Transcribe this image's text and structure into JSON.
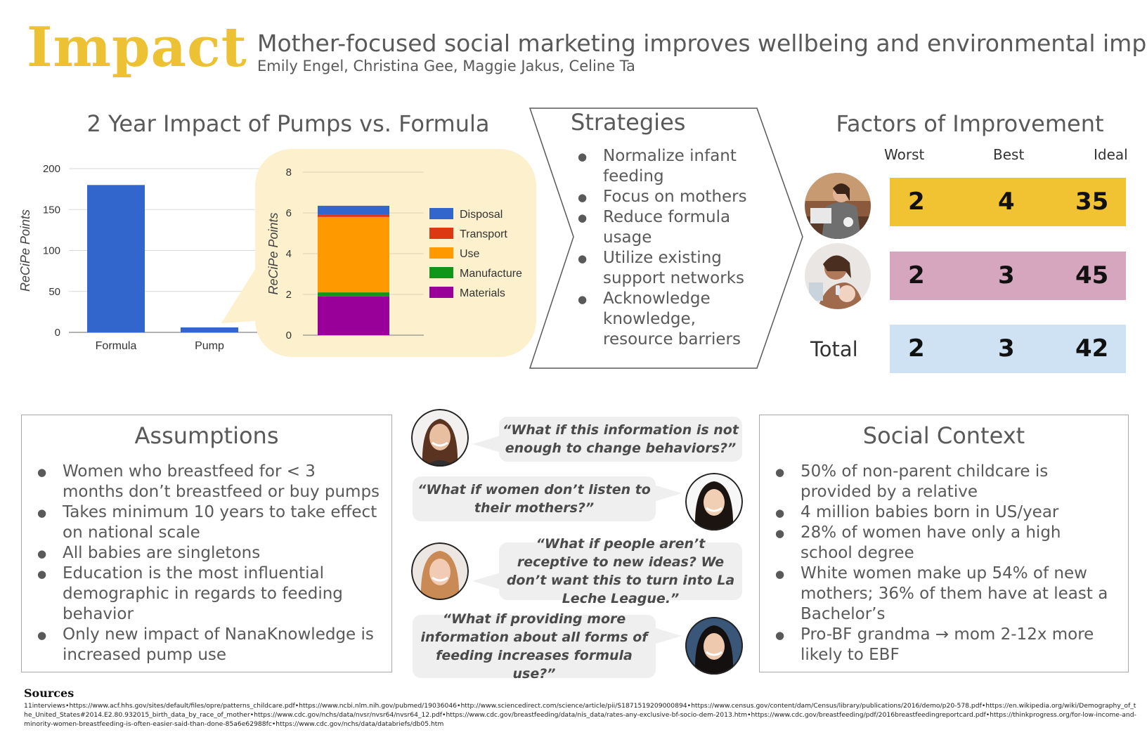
{
  "header": {
    "brand": "Impact",
    "headline": "Mother-focused social marketing improves wellbeing and environmental impact.",
    "authors": "Emily Engel, Christina Gee, Maggie Jakus, Celine Ta"
  },
  "chart_title": "2 Year Impact of Pumps vs. Formula",
  "chart_data": [
    {
      "type": "bar",
      "categories": [
        "Formula",
        "Pump"
      ],
      "values": [
        180,
        6
      ],
      "ylabel": "ReCiPe Points",
      "ylim": [
        0,
        200
      ],
      "yticks": [
        0,
        50,
        100,
        150,
        200
      ],
      "color": "#3366cc",
      "grid": true
    },
    {
      "type": "bar",
      "stacked": true,
      "categories": [
        "Pump"
      ],
      "series": [
        {
          "name": "Materials",
          "values": [
            1.9
          ],
          "color": "#990099"
        },
        {
          "name": "Manufacture",
          "values": [
            0.2
          ],
          "color": "#109618"
        },
        {
          "name": "Use",
          "values": [
            3.7
          ],
          "color": "#ff9900"
        },
        {
          "name": "Transport",
          "values": [
            0.1
          ],
          "color": "#dc3912"
        },
        {
          "name": "Disposal",
          "values": [
            0.45
          ],
          "color": "#3366cc"
        }
      ],
      "ylabel": "ReCiPe Points",
      "ylim": [
        0,
        8
      ],
      "yticks": [
        0,
        2,
        4,
        6,
        8
      ],
      "legend_position": "right",
      "legend_order": [
        "Disposal",
        "Transport",
        "Use",
        "Manufacture",
        "Materials"
      ],
      "grid": true
    }
  ],
  "strategies": {
    "title": "Strategies",
    "items": [
      "Normalize infant feeding",
      "Focus on mothers",
      "Reduce formula usage",
      "Utilize existing support networks",
      "Acknowledge knowledge, resource barriers"
    ]
  },
  "factors": {
    "title": "Factors of Improvement",
    "columns": [
      "Worst",
      "Best",
      "Ideal"
    ],
    "rows": [
      {
        "label": "",
        "values": [
          "2",
          "4",
          "35"
        ],
        "color": "#f1c232",
        "avatar": "mother-pumping-photo"
      },
      {
        "label": "",
        "values": [
          "2",
          "3",
          "45"
        ],
        "color": "#d5a6bd",
        "avatar": "mother-feeding-baby-photo"
      },
      {
        "label": "Total",
        "values": [
          "2",
          "3",
          "42"
        ],
        "color": "#cfe2f3",
        "avatar": ""
      }
    ]
  },
  "assumptions": {
    "title": "Assumptions",
    "items": [
      "Women who breastfeed for < 3 months don’t  breastfeed or buy pumps",
      "Takes minimum 10 years to take effect on national scale",
      "All babies are singletons",
      "Education is the most influential demographic in regards to feeding behavior",
      "Only new impact of NanaKnowledge is increased pump use"
    ]
  },
  "quotes": [
    "“What if this information is not enough to change behaviors?”",
    "“What if women don’t listen to their mothers?”",
    "“What if people aren’t receptive to new ideas? We don’t want this to turn into La Leche League.”",
    "“What if providing more information about all forms of feeding increases formula use?”"
  ],
  "social_context": {
    "title": "Social Context",
    "items": [
      "50% of non-parent childcare is provided by a relative",
      "4 million babies born in US/year",
      "28% of women have only a high school degree",
      "White women make up 54% of new mothers; 36% of them have at least a Bachelor’s",
      "Pro-BF grandma → mom 2-12x more likely to EBF"
    ]
  },
  "sources": {
    "title": "Sources",
    "text": "11interviews•https://www.acf.hhs.gov/sites/default/files/opre/patterns_childcare.pdf•https://www.ncbi.nlm.nih.gov/pubmed/19036046•http://www.sciencedirect.com/science/article/pii/S1871519209000894•https://www.census.gov/content/dam/Census/library/publications/2016/demo/p20-578.pdf•https://en.wikipedia.org/wiki/Demography_of_the_United_States#2014.E2.80.932015_birth_data_by_race_of_mother•https://www.cdc.gov/nchs/data/nvsr/nvsr64/nvsr64_12.pdf•https://www.cdc.gov/breastfeeding/data/nis_data/rates-any-exclusive-bf-socio-dem-2013.htm•https://www.cdc.gov/breastfeeding/pdf/2016breastfeedingreportcard.pdf•https://thinkprogress.org/for-low-income-and-minority-women-breastfeeding-is-often-easier-said-than-done-85a6e62988fc•https://www.cdc.gov/nchs/data/databriefs/db05.htm"
  }
}
